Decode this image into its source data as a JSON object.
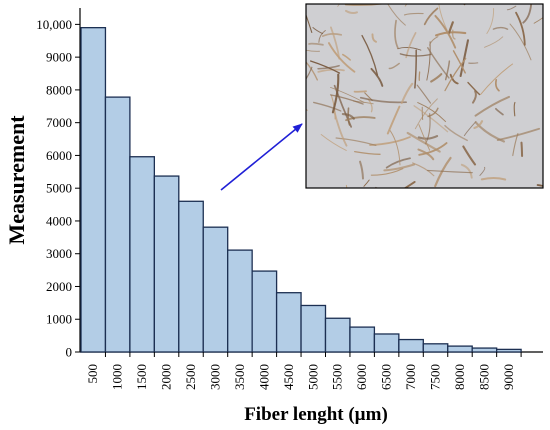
{
  "chart_data": {
    "type": "bar",
    "categories": [
      "500",
      "1000",
      "1500",
      "2000",
      "2500",
      "3000",
      "3500",
      "4000",
      "4500",
      "5000",
      "5500",
      "6000",
      "6500",
      "7000",
      "7500",
      "8000",
      "8500",
      "9000"
    ],
    "values": [
      9900,
      7780,
      5960,
      5370,
      4600,
      3810,
      3110,
      2470,
      1810,
      1420,
      1030,
      760,
      550,
      380,
      250,
      180,
      120,
      80
    ],
    "xlabel": "Fiber lenght (µm)",
    "ylabel": "Measurement",
    "ylim": [
      0,
      10500
    ],
    "yticks": [
      0,
      1000,
      2000,
      3000,
      4000,
      5000,
      6000,
      7000,
      8000,
      9000,
      10000
    ],
    "ytick_labels": [
      "0",
      "1000",
      "2000",
      "3000",
      "4000",
      "5000",
      "6000",
      "7000",
      "8000",
      "9000",
      "10,000"
    ],
    "grid": false,
    "inset": {
      "description_icon": "fiber-photo",
      "background_color": "#cfcfd2",
      "fiber_color": "#9e7f5f"
    },
    "colors": {
      "bar_fill": "#b3cde6",
      "bar_stroke": "#1c2f52",
      "arrow": "#1f1fd6",
      "axis": "#000000"
    }
  }
}
